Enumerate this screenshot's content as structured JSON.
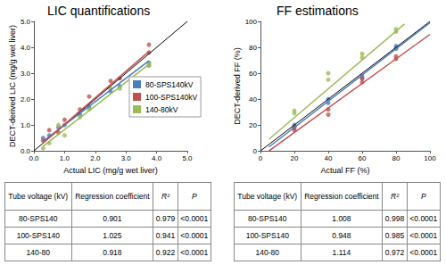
{
  "chart_data": [
    {
      "type": "scatter",
      "title": "LIC quantifications",
      "x_label": "Actual LIC (mg/g wet liver)",
      "y_label": "DECT-derived LIC (mg/g wet liver)",
      "xlim": [
        0,
        5
      ],
      "ylim": [
        0,
        5
      ],
      "xticks": [
        {
          "value": 0,
          "label": "0.0"
        },
        {
          "value": 1,
          "label": "1.0"
        },
        {
          "value": 2,
          "label": "2.0"
        },
        {
          "value": 3,
          "label": "3.0"
        },
        {
          "value": 4,
          "label": "4.0"
        },
        {
          "value": 5,
          "label": "5.0"
        }
      ],
      "yticks": [
        {
          "value": 0,
          "label": "0.0"
        },
        {
          "value": 1,
          "label": "1.0"
        },
        {
          "value": 2,
          "label": "2.0"
        },
        {
          "value": 3,
          "label": "3.0"
        },
        {
          "value": 4,
          "label": "4.0"
        },
        {
          "value": 5,
          "label": "5.0"
        }
      ],
      "grid": false,
      "legend": "right",
      "marker": "circle",
      "reference_line": [
        [
          0,
          0
        ],
        [
          5,
          5
        ]
      ],
      "series": [
        {
          "name": "80-SPS140kV",
          "color": "#4a7ebb",
          "line_style": "solid",
          "x": [
            0.3,
            0.5,
            0.8,
            1.0,
            1.5,
            1.8,
            2.5,
            2.8,
            3.75,
            3.75
          ],
          "values": [
            0.5,
            0.6,
            0.9,
            1.0,
            1.4,
            1.7,
            2.3,
            2.5,
            3.4,
            3.3
          ],
          "fit_line": [
            [
              0.3,
              0.37
            ],
            [
              3.75,
              3.48
            ]
          ]
        },
        {
          "name": "100-SPS140kV",
          "color": "#c0504d",
          "line_style": "solid",
          "x": [
            0.3,
            0.5,
            0.8,
            1.0,
            1.5,
            1.8,
            2.5,
            2.8,
            3.75,
            3.75
          ],
          "values": [
            0.4,
            0.8,
            0.7,
            1.2,
            1.6,
            2.1,
            2.7,
            2.8,
            4.1,
            3.8
          ],
          "fit_line": [
            [
              0.3,
              0.31
            ],
            [
              3.75,
              3.84
            ]
          ]
        },
        {
          "name": "140-80kV",
          "color": "#9bbb59",
          "line_style": "solid",
          "x": [
            0.3,
            0.5,
            0.8,
            1.0,
            1.5,
            1.8,
            2.5,
            2.8,
            3.75,
            3.75
          ],
          "values": [
            0.1,
            0.3,
            1.0,
            0.6,
            1.3,
            1.6,
            2.4,
            2.4,
            3.4,
            3.3
          ],
          "fit_line": [
            [
              0.3,
              0.18
            ],
            [
              3.75,
              3.34
            ]
          ]
        }
      ]
    },
    {
      "type": "scatter",
      "title": "FF estimations",
      "x_label": "Actual FF (%)",
      "y_label": "DECT-derived FF (%)",
      "xlim": [
        0,
        100
      ],
      "ylim": [
        0,
        100
      ],
      "xticks": [
        0,
        20,
        40,
        60,
        80,
        100
      ],
      "yticks": [
        0,
        20,
        40,
        60,
        80,
        100
      ],
      "grid": false,
      "marker": "circle",
      "reference_line": [
        [
          0,
          0
        ],
        [
          100,
          100
        ]
      ],
      "series": [
        {
          "name": "80-SPS140kV",
          "color": "#4a7ebb",
          "line_style": "solid",
          "x": [
            20,
            20,
            40,
            40,
            60,
            60,
            80,
            80
          ],
          "values": [
            18,
            20,
            37,
            40,
            56,
            58,
            79,
            81
          ],
          "fit_line": [
            [
              5,
              3
            ],
            [
              100,
              99
            ]
          ]
        },
        {
          "name": "100-SPS140kV",
          "color": "#c0504d",
          "line_style": "solid",
          "x": [
            20,
            20,
            40,
            40,
            60,
            60,
            80,
            80
          ],
          "values": [
            16,
            18,
            28,
            32,
            53,
            56,
            71,
            73
          ],
          "fit_line": [
            [
              5,
              0
            ],
            [
              100,
              90
            ]
          ]
        },
        {
          "name": "140-80kV",
          "color": "#9bbb59",
          "line_style": "solid",
          "x": [
            20,
            20,
            40,
            40,
            60,
            60,
            80,
            80
          ],
          "values": [
            29,
            31,
            55,
            60,
            72,
            75,
            92,
            94
          ],
          "fit_line": [
            [
              5,
              9
            ],
            [
              85,
              98
            ]
          ]
        }
      ]
    }
  ],
  "tables": [
    {
      "header": [
        "Tube voltage (kV)",
        "Regression coefficient",
        "R²",
        "P"
      ],
      "rows": [
        [
          "80-SPS140",
          "0.901",
          "0.979",
          "<0.0001"
        ],
        [
          "100-SPS140",
          "1.025",
          "0.941",
          "<0.0001"
        ],
        [
          "140-80",
          "0.918",
          "0.922",
          "<0.0001"
        ]
      ]
    },
    {
      "header": [
        "Tube voltage (kV)",
        "Regression coefficient",
        "R²",
        "P"
      ],
      "rows": [
        [
          "80-SPS140",
          "1.008",
          "0.998",
          "<0.0001"
        ],
        [
          "100-SPS140",
          "0.948",
          "0.985",
          "<0.0001"
        ],
        [
          "140-80",
          "1.114",
          "0.972",
          "<0.0001"
        ]
      ]
    }
  ]
}
